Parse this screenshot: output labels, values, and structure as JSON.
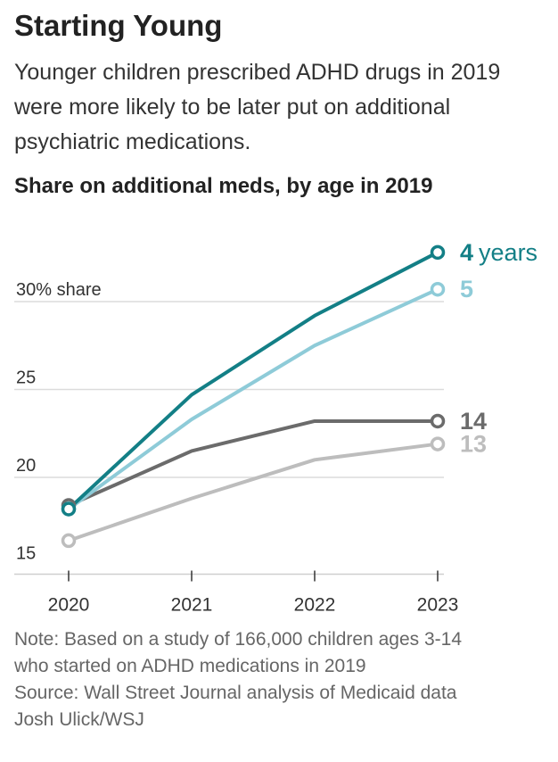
{
  "header": {
    "title": "Starting Young",
    "subtitle": "Younger children prescribed ADHD drugs in 2019 were more likely to be later put on additional psychiatric medications."
  },
  "chart_data": {
    "type": "line",
    "title": "Share on additional meds, by age in 2019",
    "x": [
      "2020",
      "2021",
      "2022",
      "2023"
    ],
    "ylim": [
      15,
      31
    ],
    "yticks": [
      {
        "value": 30,
        "label": "30% share"
      },
      {
        "value": 25,
        "label": "25"
      },
      {
        "value": 20,
        "label": "20"
      },
      {
        "value": 15,
        "label": "15"
      }
    ],
    "grid": true,
    "series": [
      {
        "name": "13",
        "values": [
          16.4,
          18.8,
          21.0,
          21.9
        ],
        "color": "#bdbdbd"
      },
      {
        "name": "14",
        "values": [
          18.4,
          21.5,
          23.2,
          23.2
        ],
        "color": "#6b6b6b"
      },
      {
        "name": "5",
        "values": [
          18.2,
          23.3,
          27.5,
          30.7
        ],
        "color": "#8ecbd8"
      },
      {
        "name": "4",
        "values": [
          18.2,
          24.7,
          29.2,
          32.8
        ],
        "color": "#137f86"
      }
    ],
    "end_labels": [
      {
        "series": "4",
        "number": "4",
        "unit": "years"
      },
      {
        "series": "5",
        "number": "5",
        "unit": ""
      },
      {
        "series": "14",
        "number": "14",
        "unit": ""
      },
      {
        "series": "13",
        "number": "13",
        "unit": ""
      }
    ]
  },
  "notes": {
    "note_line1": "Note: Based on a study of 166,000 children ages 3-14",
    "note_line2": "who started on ADHD medications in 2019",
    "source": "Source: Wall Street Journal analysis of Medicaid data",
    "credit": "Josh Ulick/WSJ"
  }
}
